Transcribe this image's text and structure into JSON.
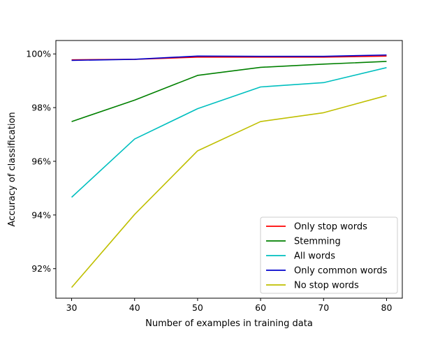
{
  "chart_data": {
    "type": "line",
    "xlabel": "Number of examples in training data",
    "ylabel": "Accuracy of classification",
    "x": [
      30,
      40,
      50,
      60,
      70,
      80
    ],
    "xlim": [
      27.5,
      82.5
    ],
    "ylim": [
      90.9,
      100.5
    ],
    "x_ticks": [
      30,
      40,
      50,
      60,
      70,
      80
    ],
    "x_tick_labels": [
      "30",
      "40",
      "50",
      "60",
      "70",
      "80"
    ],
    "y_ticks": [
      92,
      94,
      96,
      98,
      100
    ],
    "y_tick_labels": [
      "92%",
      "94%",
      "96%",
      "98%",
      "100%"
    ],
    "grid": false,
    "legend_position": "lower-right",
    "series": [
      {
        "name": "Only stop words",
        "color": "#ff0000",
        "values": [
          99.78,
          99.8,
          99.88,
          99.88,
          99.88,
          99.92
        ]
      },
      {
        "name": "Stemming",
        "color": "#008000",
        "values": [
          97.48,
          98.28,
          99.2,
          99.5,
          99.62,
          99.72
        ]
      },
      {
        "name": "All words",
        "color": "#00bfbf",
        "values": [
          94.66,
          96.83,
          97.96,
          98.77,
          98.93,
          99.49
        ]
      },
      {
        "name": "Only common words",
        "color": "#0000cc",
        "values": [
          99.76,
          99.8,
          99.92,
          99.91,
          99.91,
          99.96
        ]
      },
      {
        "name": "No stop words",
        "color": "#bfbf00",
        "values": [
          91.3,
          94.02,
          96.39,
          97.48,
          97.81,
          98.45
        ]
      }
    ]
  }
}
